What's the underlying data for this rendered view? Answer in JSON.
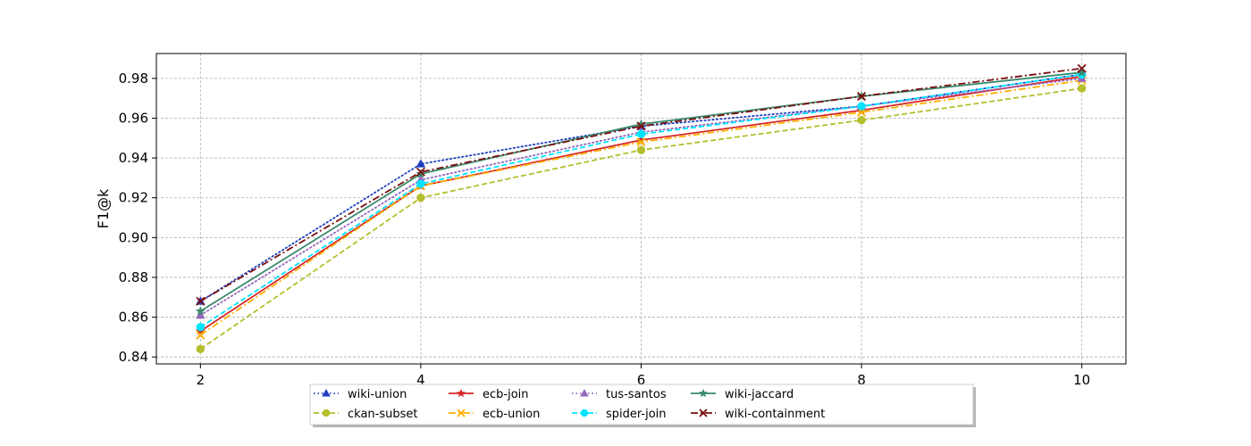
{
  "chart_data": {
    "type": "line",
    "title": "",
    "xlabel": "",
    "ylabel": "F1@k",
    "x": [
      2,
      4,
      6,
      8,
      10
    ],
    "xlim": [
      1.6,
      10.4
    ],
    "ylim": [
      0.8365,
      0.9925
    ],
    "xticks": [
      "2",
      "4",
      "6",
      "8",
      "10"
    ],
    "yticks": [
      "0.84",
      "0.86",
      "0.88",
      "0.90",
      "0.92",
      "0.94",
      "0.96",
      "0.98"
    ],
    "grid": true,
    "legend_position": "bottom-center",
    "series": [
      {
        "name": "wiki-union",
        "values": [
          0.868,
          0.937,
          0.956,
          0.966,
          0.982
        ],
        "color": "#1f3fbf",
        "dash": "dotted",
        "marker": "triangle"
      },
      {
        "name": "ckan-subset",
        "values": [
          0.844,
          0.92,
          0.944,
          0.959,
          0.975
        ],
        "color": "#b5be2c",
        "dash": "dashed",
        "marker": "circle"
      },
      {
        "name": "ecb-join",
        "values": [
          0.853,
          0.926,
          0.949,
          0.964,
          0.981
        ],
        "color": "#d62728",
        "dash": "solid",
        "marker": "star"
      },
      {
        "name": "ecb-union",
        "values": [
          0.851,
          0.926,
          0.948,
          0.963,
          0.979
        ],
        "color": "#ffb000",
        "dash": "dashdot",
        "marker": "x"
      },
      {
        "name": "tus-santos",
        "values": [
          0.861,
          0.929,
          0.953,
          0.966,
          0.98
        ],
        "color": "#9467bd",
        "dash": "dotted",
        "marker": "triangle"
      },
      {
        "name": "spider-join",
        "values": [
          0.855,
          0.927,
          0.952,
          0.966,
          0.982
        ],
        "color": "#00e5ff",
        "dash": "dashed",
        "marker": "circle"
      },
      {
        "name": "wiki-jaccard",
        "values": [
          0.863,
          0.932,
          0.957,
          0.971,
          0.983
        ],
        "color": "#3a8a6e",
        "dash": "solid",
        "marker": "star"
      },
      {
        "name": "wiki-containment",
        "values": [
          0.868,
          0.933,
          0.956,
          0.971,
          0.985
        ],
        "color": "#7a1010",
        "dash": "dashdot",
        "marker": "x"
      }
    ]
  }
}
